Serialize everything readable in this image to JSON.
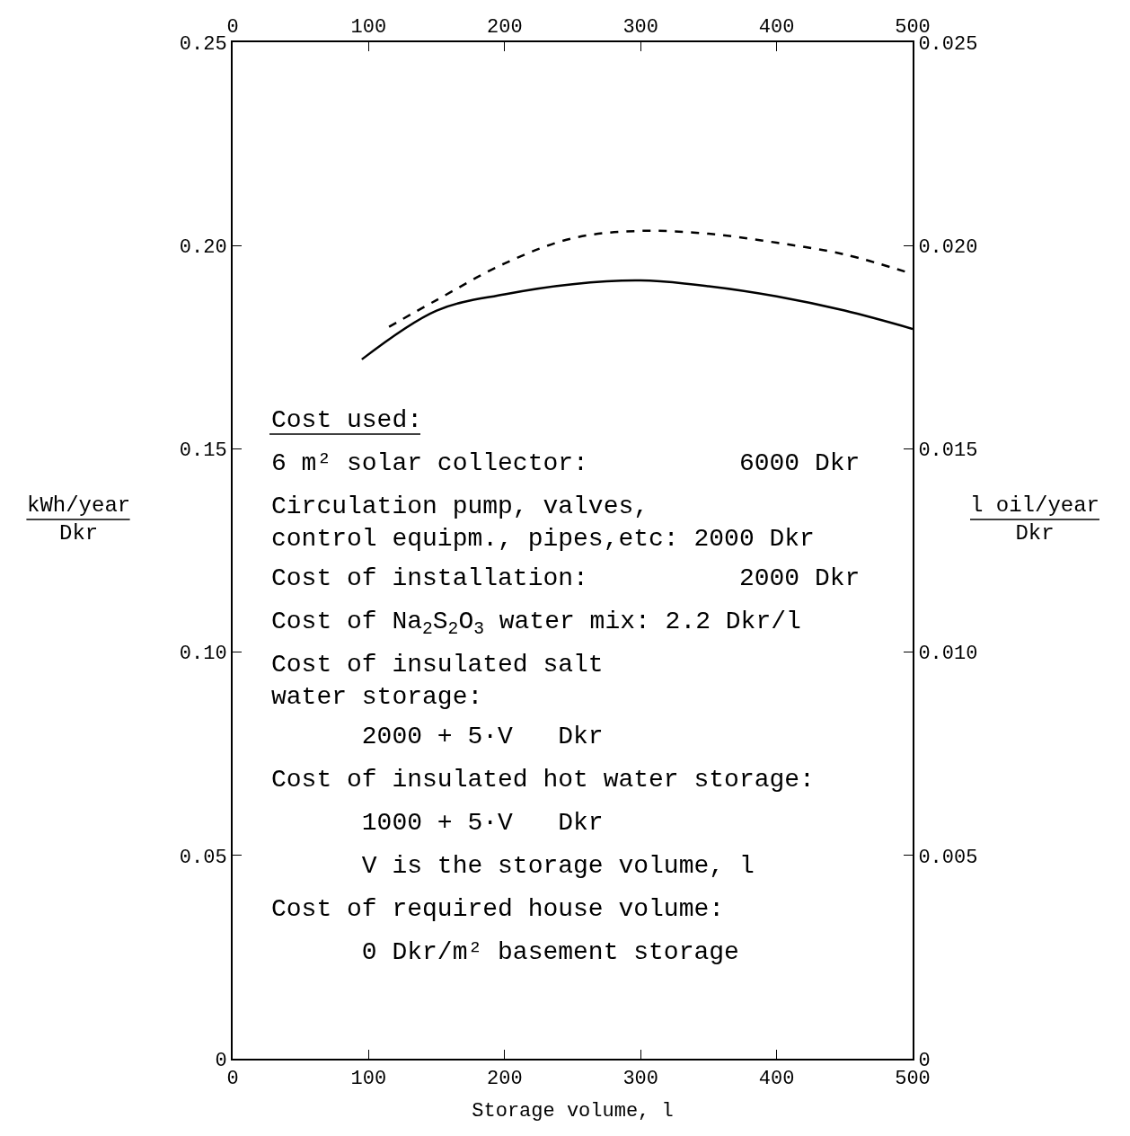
{
  "chart_data": {
    "type": "line",
    "xlabel": "Storage volume, l",
    "ylabel": "kWh/year\nDkr",
    "y2label": "l oil/year\nDkr",
    "xlim": [
      0,
      500
    ],
    "xticks": [
      0,
      100,
      200,
      300,
      400,
      500
    ],
    "x2lim": [
      0,
      500
    ],
    "x2ticks": [
      0,
      100,
      200,
      300,
      400,
      500
    ],
    "ylim": [
      0,
      0.25
    ],
    "yticks": [
      0,
      0.05,
      {
        "value": 0.1,
        "label": "0.10"
      },
      0.15,
      {
        "value": 0.2,
        "label": "0.20"
      },
      0.25
    ],
    "y2lim": [
      0,
      0.025
    ],
    "y2ticks": [
      0,
      0.005,
      {
        "value": 0.01,
        "label": "0.010"
      },
      0.015,
      {
        "value": 0.02,
        "label": "0.020"
      },
      0.025
    ],
    "legend": false,
    "marker": "none",
    "series": [
      {
        "color": "#000000",
        "line_style": "solid",
        "x": [
          95,
          150,
          200,
          250,
          300,
          350,
          400,
          450,
          500
        ],
        "values": [
          0.172,
          0.184,
          0.188,
          0.1905,
          0.1914,
          0.19,
          0.1875,
          0.184,
          0.1795
        ]
      },
      {
        "color": "#000000",
        "line_style": "dashed",
        "x": [
          115,
          150,
          200,
          250,
          300,
          350,
          400,
          450,
          500
        ],
        "values": [
          0.18,
          0.1866,
          0.1956,
          0.2018,
          0.2036,
          0.2029,
          0.2007,
          0.1978,
          0.193
        ]
      }
    ],
    "annotations": [
      "Cost used:",
      "6 m² solar collector:          6000 Dkr",
      "Circulation pump, valves,\ncontrol equipm., pipes,etc: 2000 Dkr",
      "Cost of installation:          2000 Dkr",
      "Cost of Na$_{2}$S$_{2}$O$_{3}$ water mix: 2.2 Dkr/l",
      "Cost of insulated salt\nwater storage:",
      "      2000 + 5·V   Dkr",
      "Cost of insulated hot water storage:",
      "      1000 + 5·V   Dkr",
      "      V is the storage volume, l",
      "Cost of required house volume:",
      "      0 Dkr/m² basement storage"
    ]
  }
}
